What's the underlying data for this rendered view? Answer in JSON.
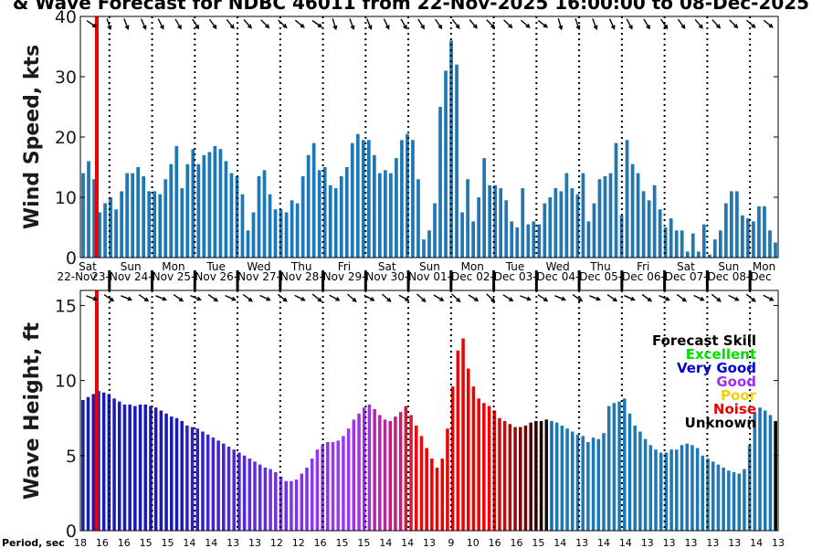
{
  "title": "& Wave Forecast for NDBC 46011 from 22-Nov-2025 16:00:00 to 08-Dec-2025",
  "days": [
    {
      "dow": "Sat",
      "date": "22-Nov"
    },
    {
      "dow": "Sun",
      "date": "23-Nov"
    },
    {
      "dow": "Mon",
      "date": "24-Nov"
    },
    {
      "dow": "Tue",
      "date": "25-Nov"
    },
    {
      "dow": "Wed",
      "date": "26-Nov"
    },
    {
      "dow": "Thu",
      "date": "27-Nov"
    },
    {
      "dow": "Fri",
      "date": "28-Nov"
    },
    {
      "dow": "Sat",
      "date": "29-Nov"
    },
    {
      "dow": "Sun",
      "date": "30-Nov"
    },
    {
      "dow": "Mon",
      "date": "01-Dec"
    },
    {
      "dow": "Tue",
      "date": "02-Dec"
    },
    {
      "dow": "Wed",
      "date": "03-Dec"
    },
    {
      "dow": "Thu",
      "date": "04-Dec"
    },
    {
      "dow": "Fri",
      "date": "05-Dec"
    },
    {
      "dow": "Sat",
      "date": "06-Dec"
    },
    {
      "dow": "Sun",
      "date": "07-Dec"
    },
    {
      "dow": "Mon",
      "date": "08-Dec"
    }
  ],
  "legend": {
    "title": "Forecast Skill",
    "entries": [
      {
        "label": "Excellent",
        "color": "#00e000"
      },
      {
        "label": "Very Good",
        "color": "#0000d0"
      },
      {
        "label": "Good",
        "color": "#a030f0"
      },
      {
        "label": "Poor",
        "color": "#f0d000"
      },
      {
        "label": "Noise",
        "color": "#f00000"
      },
      {
        "label": "Unknown",
        "color": "#000000"
      }
    ]
  },
  "period_label": "Period, sec",
  "period_values": [
    "18",
    "16",
    "16",
    "15",
    "15",
    "14",
    "14",
    "13",
    "13",
    "12",
    "12",
    "16",
    "15",
    "15",
    "14",
    "14",
    "13",
    "9",
    "10",
    "16",
    "16",
    "15",
    "14",
    "13",
    "14",
    "14",
    "13",
    "13",
    "13",
    "13",
    "13",
    "14",
    "13"
  ],
  "chart_data": [
    {
      "type": "bar",
      "ylabel": "Wind Speed, kts",
      "ylim": [
        0,
        40
      ],
      "yticks": [
        0,
        10,
        20,
        30,
        40
      ],
      "grid": false,
      "color": "#1f77b4",
      "values": [
        14,
        16,
        13,
        7.5,
        9,
        10,
        8,
        11,
        14,
        14,
        15,
        13.5,
        11,
        11,
        10.5,
        13,
        15.5,
        18.5,
        11.5,
        15.5,
        18,
        15.5,
        17,
        17.5,
        18.5,
        18,
        16,
        14,
        13.5,
        10.5,
        4.5,
        7.5,
        13.5,
        14.5,
        10.5,
        8,
        8,
        7.5,
        9.5,
        9,
        13.5,
        17,
        19,
        14.5,
        15,
        12,
        11.5,
        13.5,
        15,
        19,
        20.5,
        19.5,
        19.5,
        17,
        14,
        14.5,
        14,
        16.5,
        19.5,
        20.5,
        19.5,
        13,
        3,
        4.5,
        9,
        25,
        31,
        36,
        32,
        7.5,
        13,
        6,
        10,
        16.5,
        12,
        12,
        11.5,
        9.5,
        6,
        5,
        11.5,
        5.5,
        6,
        5.5,
        9,
        10,
        11.5,
        11,
        14,
        11.5,
        10.5,
        14,
        6,
        9,
        13,
        13.5,
        14,
        19,
        7,
        19.5,
        15.5,
        14,
        11,
        9.5,
        12,
        8,
        5,
        6.5,
        4.5,
        4.5,
        1,
        4,
        1,
        5.5,
        0.5,
        3,
        4.5,
        9,
        11,
        11,
        7,
        6.5,
        6,
        8.5,
        8.5,
        4.5,
        2.5
      ]
    },
    {
      "type": "bar",
      "ylabel": "Wave Height, ft",
      "ylim": [
        0,
        16
      ],
      "yticks": [
        0,
        5,
        10,
        15
      ],
      "grid": false,
      "values": [
        8.7,
        8.9,
        9.1,
        9.3,
        9.2,
        9.1,
        8.8,
        8.6,
        8.4,
        8.4,
        8.3,
        8.4,
        8.4,
        8.3,
        8.2,
        8.0,
        7.8,
        7.6,
        7.5,
        7.3,
        7.0,
        6.9,
        6.8,
        6.6,
        6.4,
        6.2,
        6.0,
        5.8,
        5.6,
        5.4,
        5.2,
        5.0,
        4.8,
        4.6,
        4.4,
        4.2,
        4.1,
        3.9,
        3.6,
        3.3,
        3.3,
        3.4,
        3.8,
        4.2,
        4.8,
        5.4,
        5.7,
        5.9,
        5.9,
        6.0,
        6.3,
        6.8,
        7.4,
        7.8,
        8.2,
        8.4,
        8.1,
        7.7,
        7.4,
        7.3,
        7.6,
        7.9,
        8.3,
        7.7,
        7.0,
        6.3,
        5.5,
        4.8,
        4.2,
        4.8,
        6.8,
        9.6,
        12.0,
        12.8,
        10.8,
        9.6,
        8.8,
        8.5,
        8.3,
        8.0,
        7.5,
        7.3,
        7.1,
        6.9,
        6.9,
        7.0,
        7.2,
        7.3,
        7.3,
        7.4,
        7.3,
        7.2,
        7.0,
        6.8,
        6.6,
        6.4,
        6.3,
        5.9,
        6.2,
        6.1,
        6.5,
        8.3,
        8.5,
        8.6,
        8.8,
        7.8,
        7.0,
        6.6,
        6.1,
        5.7,
        5.4,
        5.2,
        5.2,
        5.4,
        5.4,
        5.7,
        5.8,
        5.7,
        5.5,
        5.0,
        4.8,
        4.6,
        4.4,
        4.2,
        4.0,
        3.9,
        3.8,
        4.1,
        5.7,
        7.9,
        8.2,
        8.0,
        7.7,
        7.3
      ],
      "skill_colors": [
        "#1a1ab8",
        "#1a1ab8",
        "#1a1ab8",
        "#1a1ab8",
        "#1a1ab8",
        "#1a1ab8",
        "#1a1ab8",
        "#1a1ab8",
        "#1a1ab8",
        "#1a1ab8",
        "#1a1ab8",
        "#1a1ab8",
        "#1a1ab8",
        "#1a1ab8",
        "#1a1ab8",
        "#1a1ab8",
        "#1a1ab8",
        "#1a1ab8",
        "#1a1ab8",
        "#1a1ab8",
        "#3020c8",
        "#3020c8",
        "#3020c8",
        "#3020c8",
        "#4024d0",
        "#4024d0",
        "#4024d0",
        "#4024d0",
        "#5028d8",
        "#5028d8",
        "#5028d8",
        "#5028d8",
        "#602ce0",
        "#602ce0",
        "#602ce0",
        "#602ce0",
        "#7030e4",
        "#7030e4",
        "#7030e4",
        "#7030e4",
        "#8034e8",
        "#8034e8",
        "#8034e8",
        "#8034e8",
        "#9036ec",
        "#9036ec",
        "#9036ec",
        "#9036ec",
        "#9a38f0",
        "#9a38f0",
        "#9a38f0",
        "#9a38f0",
        "#a030e8",
        "#a030e8",
        "#a030e8",
        "#a030e8",
        "#b22aa8",
        "#b22aa8",
        "#b22aa8",
        "#c4207a",
        "#c4207a",
        "#c4207a",
        "#d81838",
        "#d81838",
        "#e80c10",
        "#e80c10",
        "#f00000",
        "#f00000",
        "#f00000",
        "#f00000",
        "#f00000",
        "#f00000",
        "#f00000",
        "#f00000",
        "#f00000",
        "#f00000",
        "#f00000",
        "#f00000",
        "#f00000",
        "#f00000",
        "#d80808",
        "#c80a0a",
        "#b00a0a",
        "#980a0a",
        "#800808",
        "#680808",
        "#500606",
        "#380404",
        "#200202",
        "#101010",
        "#1a6ea8",
        "#1f77b4",
        "#1f77b4",
        "#1f77b4",
        "#1f77b4",
        "#1f77b4",
        "#1f77b4",
        "#1f77b4",
        "#1f77b4",
        "#1f77b4",
        "#1f77b4",
        "#1f77b4",
        "#1f77b4",
        "#1f77b4",
        "#1f77b4",
        "#1f77b4",
        "#1f77b4",
        "#1f77b4",
        "#1f77b4",
        "#1f77b4",
        "#1f77b4",
        "#1f77b4",
        "#1f77b4",
        "#1f77b4",
        "#1f77b4",
        "#1f77b4",
        "#1f77b4",
        "#1f77b4",
        "#1f77b4",
        "#1f77b4",
        "#1f77b4",
        "#1f77b4",
        "#1f77b4",
        "#1f77b4",
        "#1f77b4",
        "#1f77b4",
        "#1f77b4",
        "#1f77b4",
        "#1f77b4",
        "#1f77b4",
        "#1f77b4",
        "#1f77b4",
        "#1f77b4"
      ]
    }
  ]
}
